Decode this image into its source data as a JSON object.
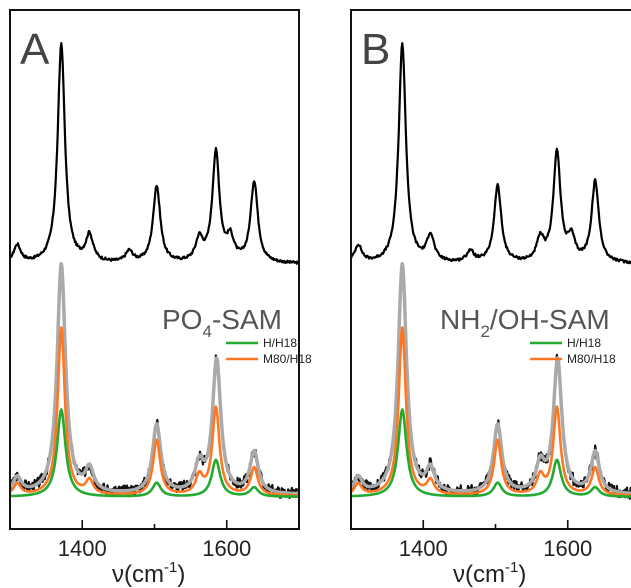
{
  "chart_data": [
    {
      "type": "line",
      "panel_label": "A",
      "sample_label": {
        "main": "PO",
        "sub": "4",
        "rest": "-SAM"
      },
      "xlabel": {
        "main": "ν(cm",
        "sup": "-1",
        "close": ")"
      },
      "xlim": [
        1300,
        1700
      ],
      "xticks": [
        1400,
        1600
      ],
      "legend": [
        {
          "name": "H/H18",
          "color": "#22aa33"
        },
        {
          "name": "M80/H18",
          "color": "#ff7722"
        }
      ],
      "peaks": {
        "top": [
          [
            1310,
            0.08
          ],
          [
            1371,
            1.0
          ],
          [
            1410,
            0.12
          ],
          [
            1465,
            0.05
          ],
          [
            1503,
            0.35
          ],
          [
            1562,
            0.1
          ],
          [
            1585,
            0.5
          ],
          [
            1605,
            0.1
          ],
          [
            1638,
            0.37
          ]
        ],
        "fit": [
          [
            1310,
            0.07
          ],
          [
            1371,
            1.0
          ],
          [
            1410,
            0.1
          ],
          [
            1503,
            0.3
          ],
          [
            1562,
            0.12
          ],
          [
            1586,
            0.58
          ],
          [
            1638,
            0.18
          ]
        ],
        "orange": [
          [
            1310,
            0.05
          ],
          [
            1371,
            0.73
          ],
          [
            1410,
            0.06
          ],
          [
            1503,
            0.24
          ],
          [
            1562,
            0.08
          ],
          [
            1585,
            0.38
          ],
          [
            1638,
            0.12
          ]
        ],
        "green": [
          [
            1371,
            0.38
          ],
          [
            1503,
            0.06
          ],
          [
            1585,
            0.16
          ],
          [
            1638,
            0.04
          ]
        ]
      }
    },
    {
      "type": "line",
      "panel_label": "B",
      "sample_label": {
        "main": "NH",
        "sub": "2",
        "rest": "/OH-SAM"
      },
      "xlabel": {
        "main": "ν(cm",
        "sup": "-1",
        "close": ")"
      },
      "xlim": [
        1300,
        1700
      ],
      "xticks": [
        1400,
        1600
      ],
      "legend": [
        {
          "name": "H/H18",
          "color": "#22aa33"
        },
        {
          "name": "M80/H18",
          "color": "#ff7722"
        }
      ],
      "peaks": {
        "top": [
          [
            1310,
            0.08
          ],
          [
            1371,
            1.0
          ],
          [
            1410,
            0.12
          ],
          [
            1465,
            0.05
          ],
          [
            1503,
            0.35
          ],
          [
            1562,
            0.1
          ],
          [
            1585,
            0.5
          ],
          [
            1605,
            0.1
          ],
          [
            1638,
            0.37
          ]
        ],
        "fit": [
          [
            1310,
            0.07
          ],
          [
            1371,
            1.0
          ],
          [
            1410,
            0.1
          ],
          [
            1503,
            0.3
          ],
          [
            1562,
            0.12
          ],
          [
            1586,
            0.58
          ],
          [
            1638,
            0.18
          ]
        ],
        "orange": [
          [
            1310,
            0.05
          ],
          [
            1371,
            0.73
          ],
          [
            1410,
            0.06
          ],
          [
            1503,
            0.24
          ],
          [
            1562,
            0.08
          ],
          [
            1585,
            0.38
          ],
          [
            1638,
            0.12
          ]
        ],
        "green": [
          [
            1371,
            0.38
          ],
          [
            1503,
            0.06
          ],
          [
            1585,
            0.16
          ],
          [
            1638,
            0.04
          ]
        ]
      }
    }
  ],
  "colors": {
    "frame": "#111111",
    "top_trace": "#000000",
    "measured": "#111111",
    "fit": "#aaaaaa",
    "orange": "#ff7722",
    "green": "#22aa33"
  }
}
